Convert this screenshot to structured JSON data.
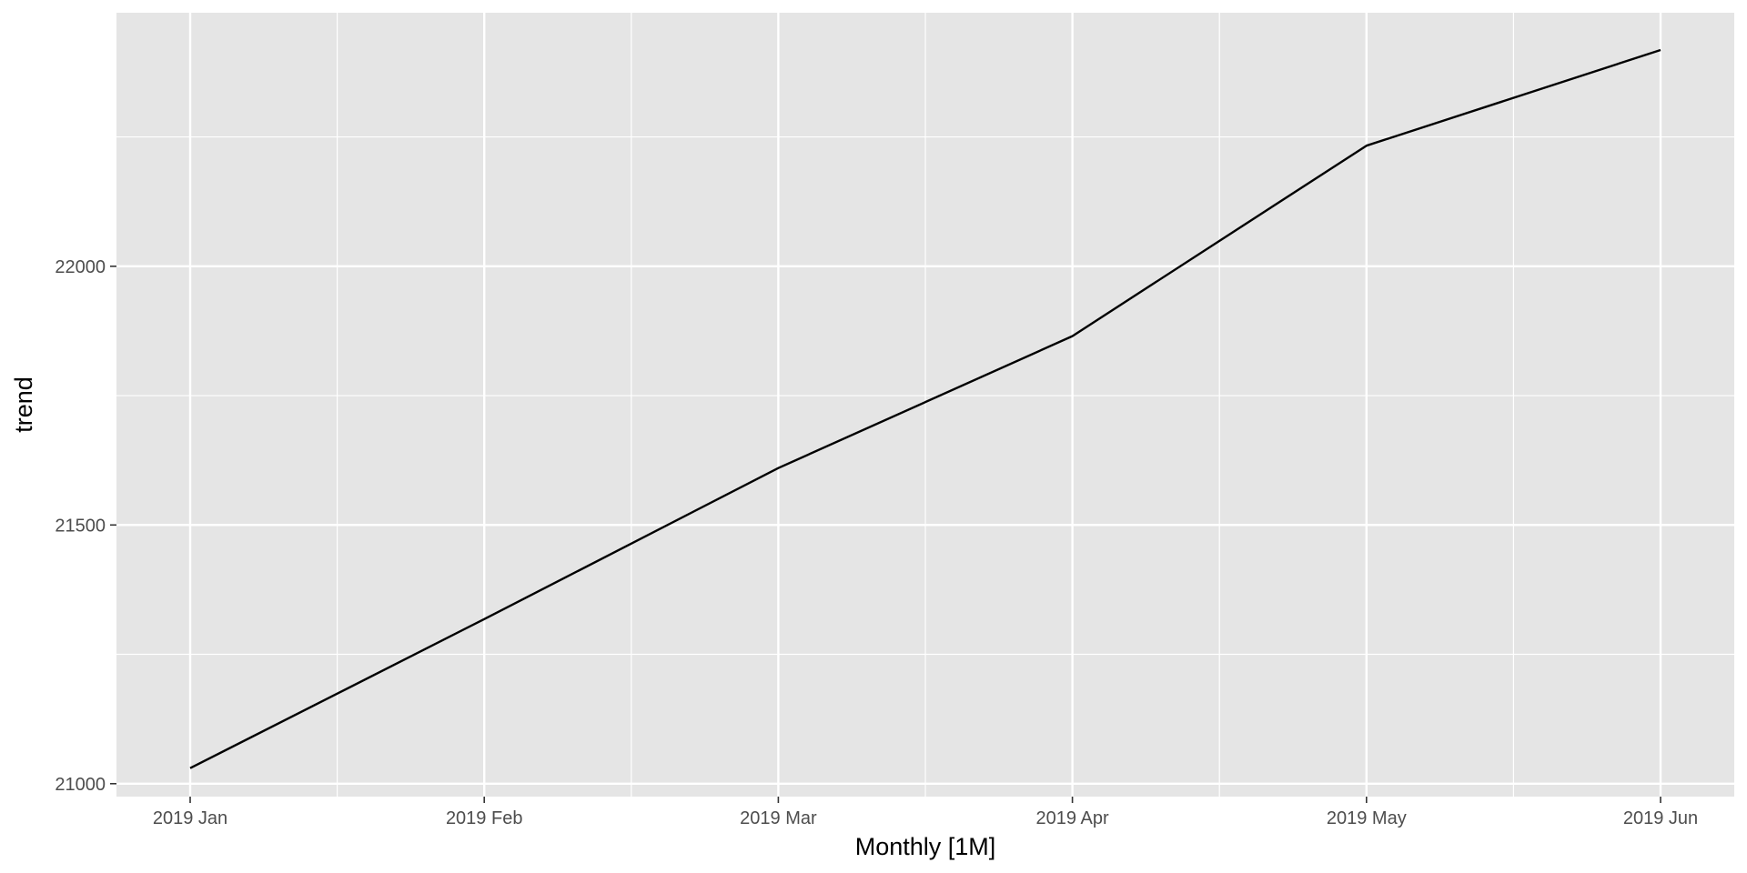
{
  "chart_data": {
    "type": "line",
    "xlabel": "Monthly [1M]",
    "ylabel": "trend",
    "x": [
      "2019 Jan",
      "2019 Feb",
      "2019 Mar",
      "2019 Apr",
      "2019 May",
      "2019 Jun"
    ],
    "y_ticks": [
      21000,
      21500,
      22000
    ],
    "ylim": [
      20975,
      22490
    ],
    "series": [
      {
        "values": [
          21030,
          21318,
          21610,
          21865,
          22233,
          22418
        ]
      }
    ],
    "grid": true,
    "legend": "none",
    "colors": {
      "panel": "#e5e5e5",
      "grid": "#ffffff",
      "line": "#000000",
      "tick_text": "#4d4d4d",
      "tick_mark": "#333333"
    }
  }
}
